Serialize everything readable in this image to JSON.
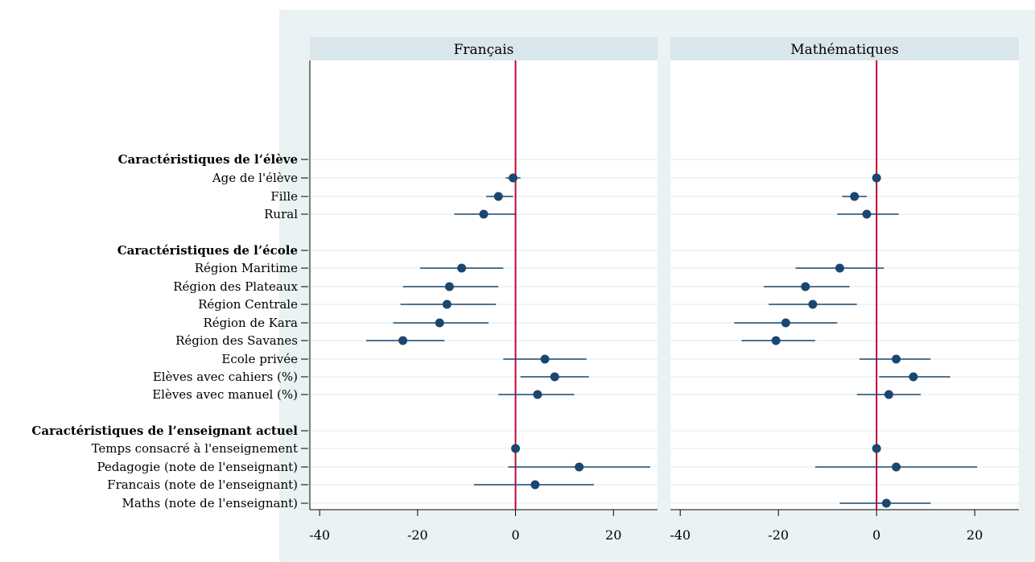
{
  "chart_data": {
    "type": "coefficient-plot",
    "panels": [
      {
        "title": "Français",
        "estimates": [
          -0.5,
          -3.5,
          -6.5,
          -11,
          -13.5,
          -14,
          -15.5,
          -23,
          6,
          8,
          4.5,
          0,
          13,
          4,
          null
        ],
        "ci_low": [
          -2,
          -6,
          -12.5,
          -19.5,
          -23,
          -23.5,
          -25,
          -30.5,
          -2.5,
          1,
          -3.5,
          0,
          -1.5,
          -8.5,
          null
        ],
        "ci_high": [
          1,
          -0.5,
          0,
          -2.5,
          -3.5,
          -4,
          -5.5,
          -14.5,
          14.5,
          15,
          12,
          0,
          27.5,
          16,
          null
        ]
      },
      {
        "title": "Mathématiques",
        "estimates": [
          0,
          -4.5,
          -2,
          -7.5,
          -14.5,
          -13,
          -18.5,
          -20.5,
          4,
          7.5,
          2.5,
          0,
          4,
          null,
          2
        ],
        "ci_low": [
          0,
          -7,
          -8,
          -16.5,
          -23,
          -22,
          -29,
          -27.5,
          -3.5,
          0.5,
          -4,
          0,
          -12.5,
          null,
          -7.5
        ],
        "ci_high": [
          0,
          -2,
          4.5,
          1.5,
          -5.5,
          -4,
          -8,
          -12.5,
          11,
          15,
          9,
          0,
          20.5,
          null,
          11
        ]
      }
    ],
    "sections": [
      {
        "label": "Caractéristiques de l’élève",
        "start": 0
      },
      {
        "label": "Caractéristiques de l’école",
        "start": 3
      },
      {
        "label": "Caractéristiques de l’enseignant actuel",
        "start": 11
      }
    ],
    "variables": [
      "Age de l'élève",
      "Fille",
      "Rural",
      "Région Maritime",
      "Région des Plateaux",
      "Région Centrale",
      "Région de Kara",
      "Région des Savanes",
      "Ecole privée",
      "Elèves avec cahiers (%)",
      "Elèves avec manuel (%)",
      "Temps consacré à l'enseignement",
      "Pedagogie (note de l'enseignant)",
      "Francais (note de l'enseignant)",
      "Maths (note de l'enseignant)"
    ],
    "x_ticks": [
      -40,
      -20,
      0,
      20
    ],
    "xlim": [
      -42,
      29
    ],
    "reference_line": 0,
    "grid": true,
    "colors": {
      "outer_bg": "#eaf2f3",
      "plot_bg": "#ffffff",
      "strip_bg": "#d9e6ec",
      "marker": "#1a476f",
      "ref_line": "#c10534",
      "grid": "#eaf2f3"
    }
  }
}
